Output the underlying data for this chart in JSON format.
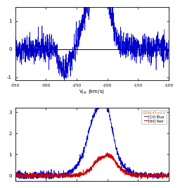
{
  "title2": "G358.45+0.0",
  "xlabel": "V$_{lsr}$ (km/s)",
  "panel1_xlim": [
    -350,
    -100
  ],
  "panel1_ylim": [
    -1.1,
    1.5
  ],
  "panel2_xlim": [
    -350,
    -100
  ],
  "panel2_ylim": [
    -0.25,
    3.2
  ],
  "panel1_yticks": [
    -1,
    0,
    1
  ],
  "panel2_yticks": [
    0,
    1,
    2,
    3
  ],
  "panel1_xticks": [
    -350,
    -300,
    -250,
    -200,
    -150,
    -100
  ],
  "legend_label_cii": "[CII] Blue",
  "legend_label_nii": "[NII] Red",
  "blue_color": "#0000cc",
  "red_color": "#cc0000",
  "background_color": "#ffffff",
  "noise_seed": 42
}
